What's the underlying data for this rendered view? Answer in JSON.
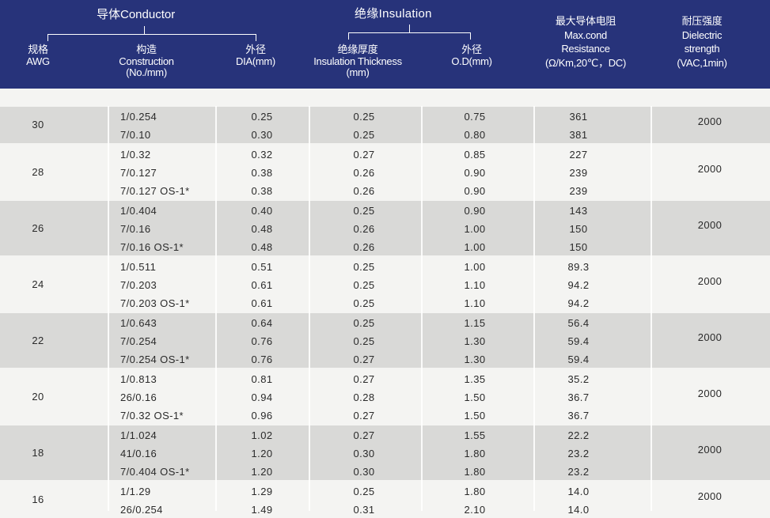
{
  "header": {
    "conductor_group": "导体Conductor",
    "insulation_group": "绝缘Insulation",
    "awg_cn": "规格",
    "awg_en": "AWG",
    "construction_cn": "构造",
    "construction_en": "Construction",
    "construction_unit": "(No./mm)",
    "dia_cn": "外径",
    "dia_en": "DIA(mm)",
    "ins_thick_cn": "绝缘厚度",
    "ins_thick_en": "Insulation Thickness",
    "ins_thick_unit": "(mm)",
    "od_cn": "外径",
    "od_en": "O.D(mm)",
    "res_cn": "最大导体电阻",
    "res_en1": "Max.cond",
    "res_en2": "Resistance",
    "res_unit": "(Ω/Km,20℃，DC)",
    "diel_cn": "耐压强度",
    "diel_en1": "Dielectric",
    "diel_en2": "strength",
    "diel_unit": "(VAC,1min)"
  },
  "groups": [
    {
      "awg": "30",
      "dielectric": "2000",
      "rows": [
        {
          "construction": "1/0.254",
          "dia": "0.25",
          "thickness": "0.25",
          "od": "0.75",
          "resistance": "361"
        },
        {
          "construction": "7/0.10",
          "dia": "0.30",
          "thickness": "0.25",
          "od": "0.80",
          "resistance": "381"
        }
      ]
    },
    {
      "awg": "28",
      "dielectric": "2000",
      "rows": [
        {
          "construction": "1/0.32",
          "dia": "0.32",
          "thickness": "0.27",
          "od": "0.85",
          "resistance": "227"
        },
        {
          "construction": "7/0.127",
          "dia": "0.38",
          "thickness": "0.26",
          "od": "0.90",
          "resistance": "239"
        },
        {
          "construction": "7/0.127 OS-1*",
          "dia": "0.38",
          "thickness": "0.26",
          "od": "0.90",
          "resistance": "239"
        }
      ]
    },
    {
      "awg": "26",
      "dielectric": "2000",
      "rows": [
        {
          "construction": "1/0.404",
          "dia": "0.40",
          "thickness": "0.25",
          "od": "0.90",
          "resistance": "143"
        },
        {
          "construction": "7/0.16",
          "dia": "0.48",
          "thickness": "0.26",
          "od": "1.00",
          "resistance": "150"
        },
        {
          "construction": "7/0.16 OS-1*",
          "dia": "0.48",
          "thickness": "0.26",
          "od": "1.00",
          "resistance": "150"
        }
      ]
    },
    {
      "awg": "24",
      "dielectric": "2000",
      "rows": [
        {
          "construction": "1/0.511",
          "dia": "0.51",
          "thickness": "0.25",
          "od": "1.00",
          "resistance": "89.3"
        },
        {
          "construction": "7/0.203",
          "dia": "0.61",
          "thickness": "0.25",
          "od": "1.10",
          "resistance": "94.2"
        },
        {
          "construction": "7/0.203 OS-1*",
          "dia": "0.61",
          "thickness": "0.25",
          "od": "1.10",
          "resistance": "94.2"
        }
      ]
    },
    {
      "awg": "22",
      "dielectric": "2000",
      "rows": [
        {
          "construction": "1/0.643",
          "dia": "0.64",
          "thickness": "0.25",
          "od": "1.15",
          "resistance": "56.4"
        },
        {
          "construction": "7/0.254",
          "dia": "0.76",
          "thickness": "0.25",
          "od": "1.30",
          "resistance": "59.4"
        },
        {
          "construction": "7/0.254 OS-1*",
          "dia": "0.76",
          "thickness": "0.27",
          "od": "1.30",
          "resistance": "59.4"
        }
      ]
    },
    {
      "awg": "20",
      "dielectric": "2000",
      "rows": [
        {
          "construction": "1/0.813",
          "dia": "0.81",
          "thickness": "0.27",
          "od": "1.35",
          "resistance": "35.2"
        },
        {
          "construction": "26/0.16",
          "dia": "0.94",
          "thickness": "0.28",
          "od": "1.50",
          "resistance": "36.7"
        },
        {
          "construction": "7/0.32 OS-1*",
          "dia": "0.96",
          "thickness": "0.27",
          "od": "1.50",
          "resistance": "36.7"
        }
      ]
    },
    {
      "awg": "18",
      "dielectric": "2000",
      "rows": [
        {
          "construction": "1/1.024",
          "dia": "1.02",
          "thickness": "0.27",
          "od": "1.55",
          "resistance": "22.2"
        },
        {
          "construction": "41/0.16",
          "dia": "1.20",
          "thickness": "0.30",
          "od": "1.80",
          "resistance": "23.2"
        },
        {
          "construction": "7/0.404 OS-1*",
          "dia": "1.20",
          "thickness": "0.30",
          "od": "1.80",
          "resistance": "23.2"
        }
      ]
    },
    {
      "awg": "16",
      "dielectric": "2000",
      "rows": [
        {
          "construction": "1/1.29",
          "dia": "1.29",
          "thickness": "0.25",
          "od": "1.80",
          "resistance": "14.0"
        },
        {
          "construction": "26/0.254",
          "dia": "1.49",
          "thickness": "0.31",
          "od": "2.10",
          "resistance": "14.0"
        }
      ]
    }
  ]
}
